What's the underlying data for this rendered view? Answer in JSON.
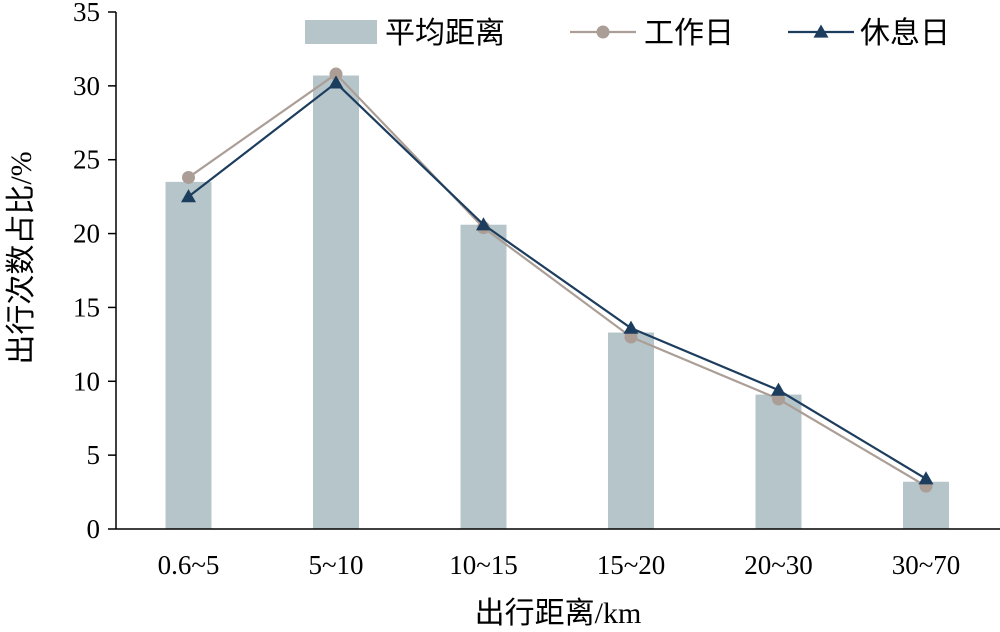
{
  "chart_data": {
    "type": "bar",
    "xlabel": "出行距离/km",
    "ylabel": "出行次数占比/%",
    "ylim": [
      0,
      35
    ],
    "yticks": [
      0,
      5,
      10,
      15,
      20,
      25,
      30,
      35
    ],
    "grid": false,
    "legend_position": "top",
    "categories": [
      "0.6~5",
      "5~10",
      "10~15",
      "15~20",
      "20~30",
      "30~70"
    ],
    "series": [
      {
        "name": "平均距离",
        "type": "bar",
        "color": "#b6c5c9",
        "values": [
          23.5,
          30.7,
          20.6,
          13.3,
          9.1,
          3.2
        ]
      },
      {
        "name": "工作日",
        "type": "line",
        "marker": "circle",
        "color": "#ab9e96",
        "values": [
          23.8,
          30.8,
          20.4,
          13.0,
          8.8,
          2.9
        ]
      },
      {
        "name": "休息日",
        "type": "line",
        "marker": "triangle",
        "color": "#1c3d5e",
        "values": [
          22.5,
          30.2,
          20.6,
          13.6,
          9.4,
          3.4
        ]
      }
    ]
  }
}
